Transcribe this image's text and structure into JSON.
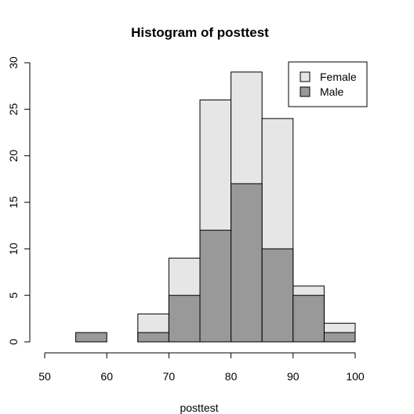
{
  "chart_data": {
    "type": "bar",
    "title": "Histogram of posttest",
    "xlabel": "posttest",
    "ylabel": "",
    "bins": [
      [
        55,
        60
      ],
      [
        60,
        65
      ],
      [
        65,
        70
      ],
      [
        70,
        75
      ],
      [
        75,
        80
      ],
      [
        80,
        85
      ],
      [
        85,
        90
      ],
      [
        90,
        95
      ],
      [
        95,
        100
      ]
    ],
    "series": [
      {
        "name": "Female",
        "color": "#e6e6e6",
        "values": [
          0,
          0,
          3,
          9,
          26,
          29,
          24,
          6,
          2
        ]
      },
      {
        "name": "Male",
        "color": "#999999",
        "values": [
          1,
          0,
          1,
          5,
          12,
          17,
          10,
          5,
          1
        ]
      }
    ],
    "xlim": [
      50,
      100
    ],
    "ylim": [
      0,
      30
    ],
    "xticks": [
      "50",
      "60",
      "70",
      "80",
      "90",
      "100"
    ],
    "yticks": [
      "0",
      "5",
      "10",
      "15",
      "20",
      "25",
      "30"
    ],
    "legend_position": "top-right",
    "grid": false
  }
}
